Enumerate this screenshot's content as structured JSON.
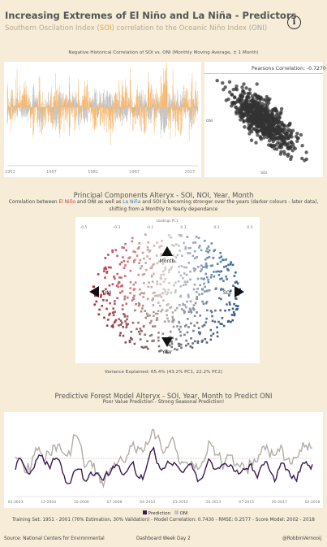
{
  "header": {
    "title": "Increasing Extremes of El Niño and La Niña - Predictors",
    "subtitle_prefix": "Southern Oscilation Index (",
    "subtitle_soi": "SOI",
    "subtitle_mid": ") correlation to the Oceanic Niño Index (",
    "subtitle_oni": "ONI",
    "subtitle_suffix": ")",
    "info_icon": "info-icon",
    "info_label": "i"
  },
  "colors": {
    "background": "#f6ecd7",
    "soi": "#f5b060",
    "oni": "#c4c4c4",
    "prediction": "#3b1a55",
    "scatter": "#333333"
  },
  "chart_data": [
    {
      "type": "line",
      "title": "Negative Historical Correlation of SOI vs. ONI (Monthly Moving Average, ± 1 Month)",
      "x_tick_labels": [
        "1952",
        "1967",
        "1982",
        "1997",
        "2017"
      ],
      "series": [
        {
          "name": "SOI"
        },
        {
          "name": "ONI"
        }
      ],
      "xlim": [
        1951,
        2020
      ]
    },
    {
      "type": "scatter",
      "title": "Pearsons Correlation: -0.7270",
      "xlabel": "SOI",
      "ylabel": "ONI",
      "correlation": -0.727
    },
    {
      "type": "scatter",
      "title": "Principal Components Alteryx - SOI, NOI, Year, Month",
      "axis_top_label": "Loadings PC1",
      "top_ticks": [
        "-0.5",
        "-0.3",
        "-0.1",
        "0.1",
        "0.3",
        "0.5"
      ],
      "loadings": [
        {
          "label": "Month",
          "direction": "up"
        },
        {
          "label": "ONI",
          "direction": "left"
        },
        {
          "label": "SOI",
          "direction": "right"
        },
        {
          "label": "Year",
          "direction": "down"
        }
      ],
      "color_scale": [
        "#c0283a",
        "#d9d0cc",
        "#2b5f96"
      ],
      "variance_explained": "Variance Explained: 65.4% (43.2% PC1, 22.2% PC2)"
    },
    {
      "type": "line",
      "title": "Predictive Forest Model Alteryx - SOI, Year, Month to Predict ONI",
      "subtitle": "Poor Value Prediction - Strong Seasonal Prediction!",
      "series": [
        {
          "name": "Prediction"
        },
        {
          "name": "ONI"
        }
      ],
      "x_tick_labels": [
        "03-2003",
        "12-2004",
        "10-2006",
        "07-2008",
        "04-2010",
        "01-2012",
        "10-2013",
        "07-2015",
        "05-2017",
        "02-2018"
      ],
      "reference_line": 0
    }
  ],
  "pca": {
    "subtitle_prefix": "Correlation between ",
    "el_nino": "El Niño",
    "subtitle_mid": " and ONI as well as ",
    "la_nina": "La Niña",
    "subtitle_suffix": " and SOI is becoming stronger over the years (darker colours - later data),",
    "subtitle_line2": "shifting from a Monthly to Yearly dependance"
  },
  "legend": {
    "prediction": "Prediction",
    "oni": "ONI"
  },
  "footer": {
    "model_stats": "Training Set: 1951 - 2001 (70% Estimation, 30% Validation) - Model Correlation: 0.7430 - RMSE: 0.2577 - Score Model: 2002 - 2018",
    "source": "Source: National Centers for Environmental",
    "event": "Dashboard Week Day 2",
    "author": "@RobbinVernooij"
  }
}
